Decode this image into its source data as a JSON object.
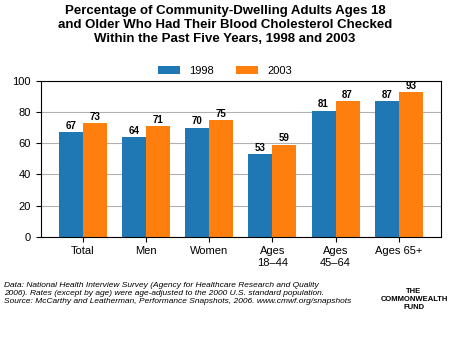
{
  "chart_data": {
    "type": "bar",
    "title": "Percentage of Community-Dwelling Adults Ages 18\nand Older Who Had Their Blood Cholesterol Checked\nWithin the Past Five Years, 1998 and 2003",
    "categories": [
      "Total",
      "Men",
      "Women",
      "Ages\n18–44",
      "Ages\n45–64",
      "Ages 65+"
    ],
    "series": [
      {
        "name": "1998",
        "values": [
          67,
          64,
          70,
          53,
          81,
          87
        ]
      },
      {
        "name": "2003",
        "values": [
          73,
          71,
          75,
          59,
          87,
          93
        ]
      }
    ],
    "ylim": [
      0,
      100
    ],
    "yticks": [
      0,
      20,
      40,
      60,
      80,
      100
    ],
    "grid": true,
    "legend": "upper center",
    "data_labels": true,
    "annotations": [
      "Data: National Health Interview Survey (Agency for Healthcare Research and Quality\n2006). Rates (except by age) were age-adjusted to the 2000 U.S. standard population.\nSource: McCarthy and Leatherman, Performance Snapshots, 2006. www.cmwf.org/snapshots",
      "THE\nCOMMONWEALTH\nFUND"
    ]
  }
}
